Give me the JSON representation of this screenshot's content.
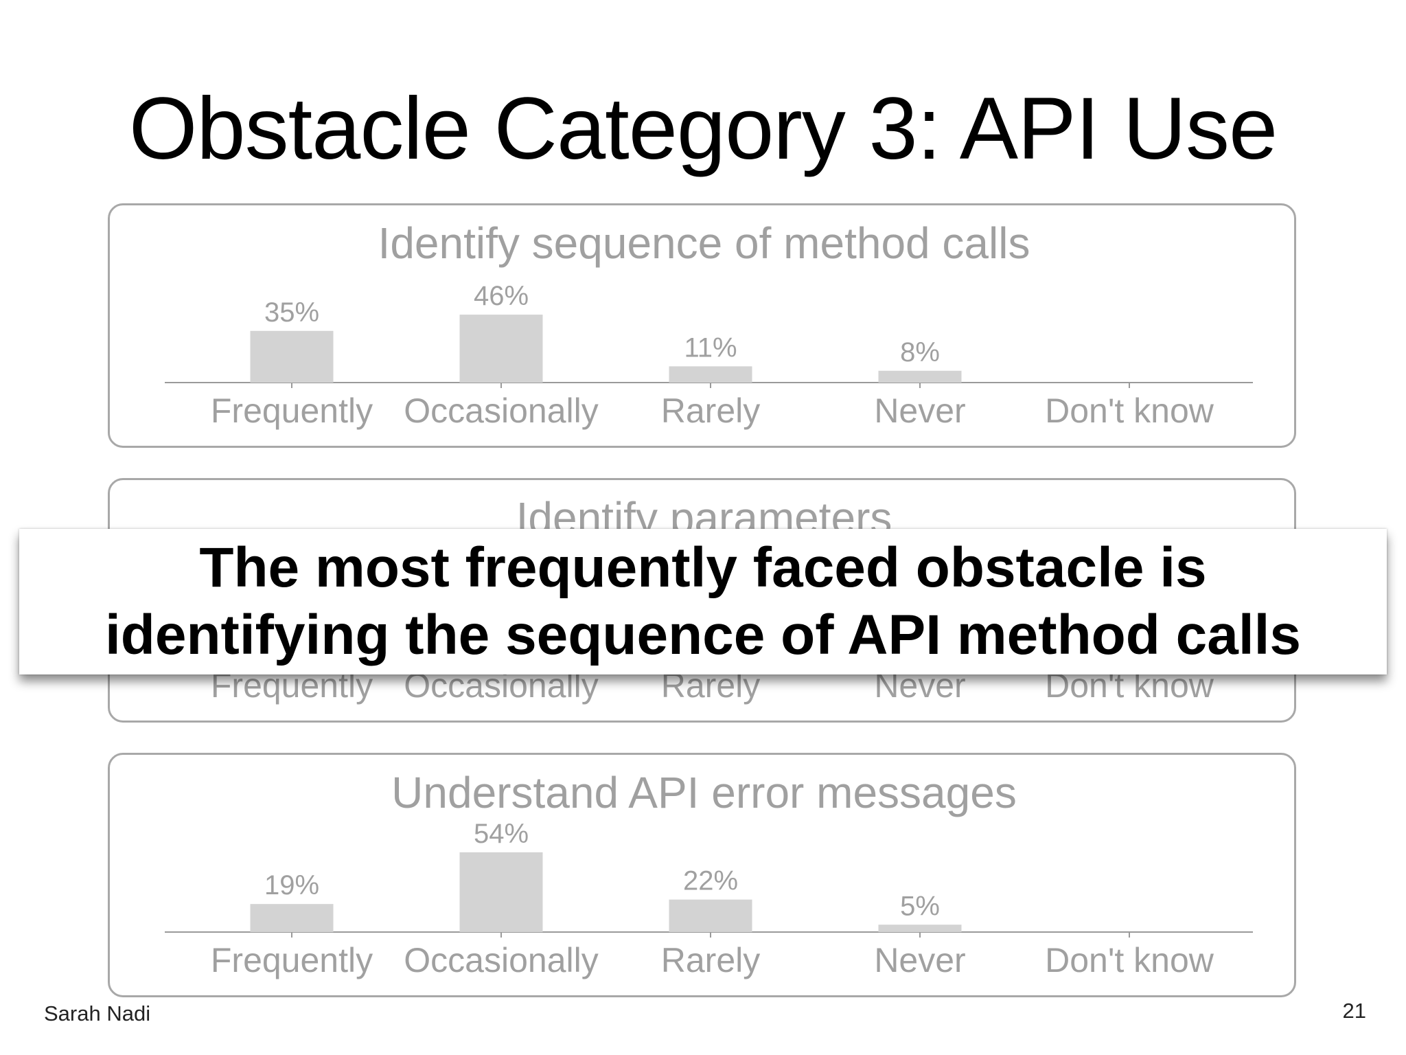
{
  "slide": {
    "title": "Obstacle Category 3: API Use",
    "callout": {
      "lines": [
        "The most frequently faced obstacle is",
        "identifying the sequence of API method calls"
      ]
    },
    "author": "Sarah Nadi",
    "page_number": "21"
  },
  "colors": {
    "bar": "#d3d3d3",
    "panel_text": "#a0a0a0",
    "panel_border": "#a8a8a8",
    "axis": "#9a9a9a"
  },
  "chart_data": [
    {
      "type": "bar",
      "title": "Identify sequence of method calls",
      "categories": [
        "Frequently",
        "Occasionally",
        "Rarely",
        "Never",
        "Don't know"
      ],
      "values": [
        35,
        46,
        11,
        8,
        null
      ],
      "value_labels": [
        "35%",
        "46%",
        "11%",
        "8%",
        ""
      ],
      "unit": "%"
    },
    {
      "type": "bar",
      "title": "Identify parameters",
      "categories": [
        "Frequently",
        "Occasionally",
        "Rarely",
        "Never",
        "Don't know"
      ],
      "values": [
        null,
        null,
        null,
        null,
        null
      ],
      "value_labels": [
        "",
        "",
        "",
        "",
        ""
      ],
      "unit": "%"
    },
    {
      "type": "bar",
      "title": "Understand API error messages",
      "categories": [
        "Frequently",
        "Occasionally",
        "Rarely",
        "Never",
        "Don't know"
      ],
      "values": [
        19,
        54,
        22,
        5,
        null
      ],
      "value_labels": [
        "19%",
        "54%",
        "22%",
        "5%",
        ""
      ],
      "unit": "%"
    }
  ]
}
